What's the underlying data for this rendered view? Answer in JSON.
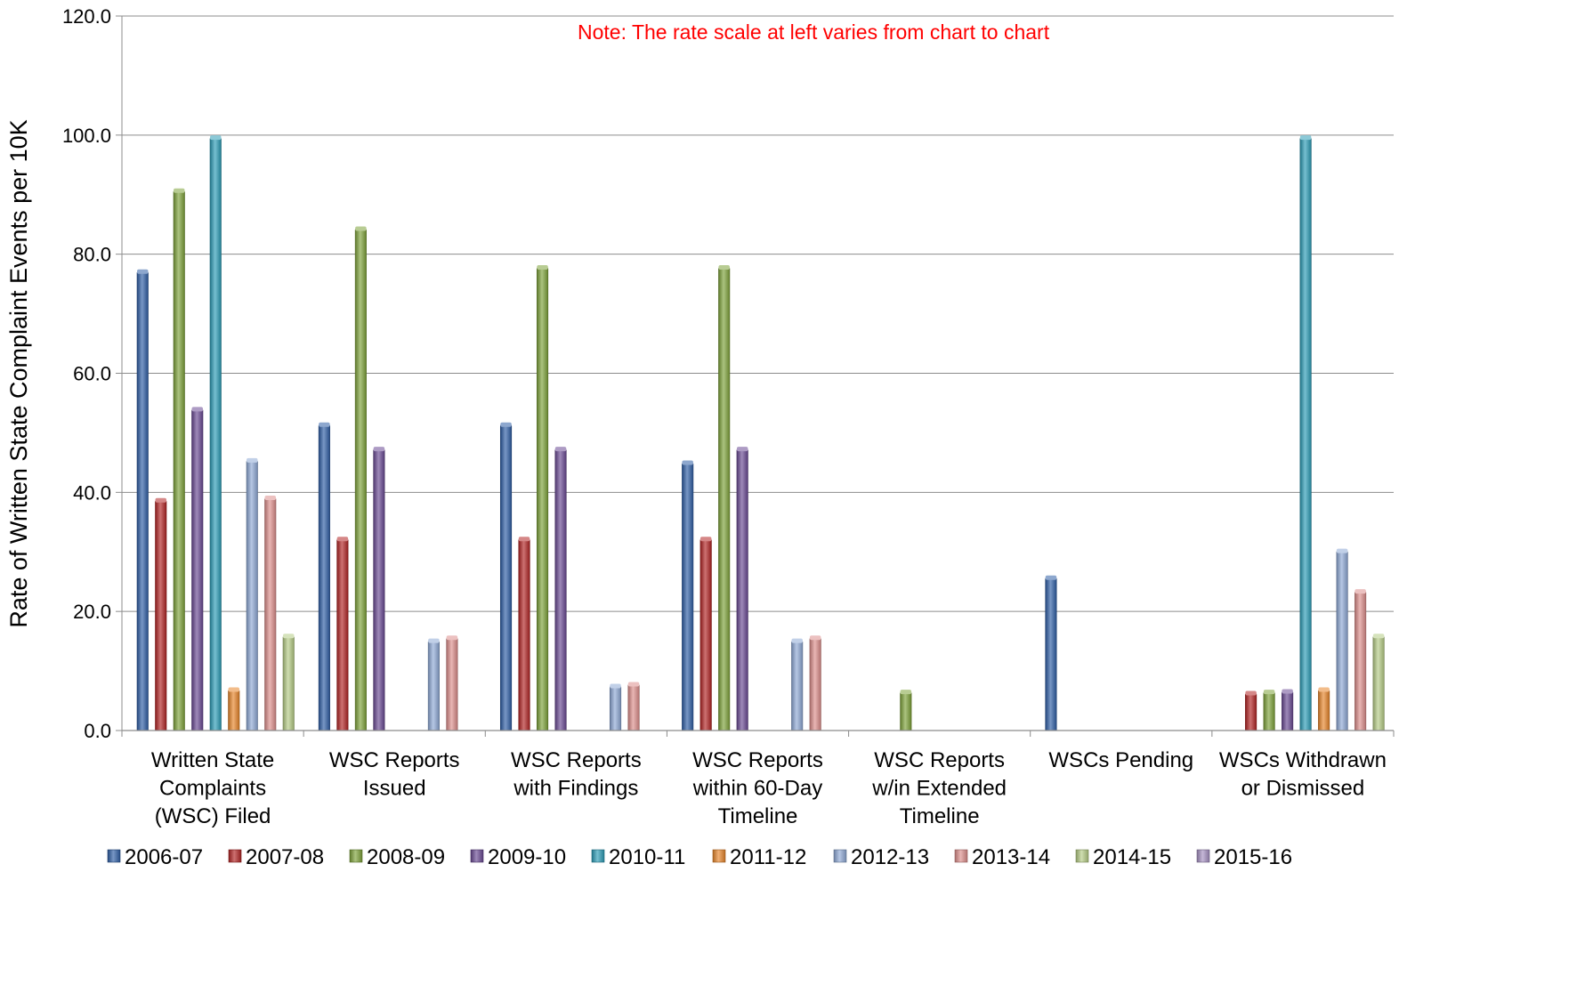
{
  "chart_data": {
    "type": "bar",
    "title": "",
    "note": "Note:  The rate scale at left varies from chart to chart",
    "ylabel": "Rate of Written State Complaint Events per 10K",
    "xlabel": "",
    "ylim": [
      0,
      120
    ],
    "yticks": [
      0,
      20,
      40,
      60,
      80,
      100,
      120
    ],
    "ytick_labels": [
      "0.0",
      "20.0",
      "40.0",
      "60.0",
      "80.0",
      "100.0",
      "120.0"
    ],
    "grid": "horizontal",
    "legend_position": "bottom",
    "categories": [
      [
        "Written State",
        "Complaints",
        "(WSC) Filed"
      ],
      [
        "WSC Reports",
        "Issued"
      ],
      [
        "WSC Reports",
        "with Findings"
      ],
      [
        "WSC Reports",
        "within 60-Day",
        "Timeline"
      ],
      [
        "WSC Reports",
        "w/in Extended",
        "Timeline"
      ],
      [
        "WSCs Pending"
      ],
      [
        "WSCs Withdrawn",
        "or Dismissed"
      ]
    ],
    "series": [
      {
        "name": "2006-07",
        "color": "#2f5fa6",
        "values": [
          77.0,
          51.3,
          51.3,
          44.9,
          0,
          25.6,
          0
        ]
      },
      {
        "name": "2007-08",
        "color": "#b22424",
        "values": [
          38.6,
          32.1,
          32.1,
          32.1,
          0,
          0,
          6.2
        ]
      },
      {
        "name": "2008-09",
        "color": "#7ea33a",
        "values": [
          90.6,
          84.2,
          77.7,
          77.7,
          6.4,
          0,
          6.4
        ]
      },
      {
        "name": "2009-10",
        "color": "#6a4a94",
        "values": [
          53.9,
          47.2,
          47.2,
          47.2,
          0,
          0,
          6.5
        ]
      },
      {
        "name": "2010-11",
        "color": "#2c9cb6",
        "values": [
          99.5,
          0,
          0,
          0,
          0,
          0,
          99.5
        ]
      },
      {
        "name": "2011-12",
        "color": "#e8862a",
        "values": [
          6.8,
          0,
          0,
          0,
          0,
          0,
          6.8
        ]
      },
      {
        "name": "2012-13",
        "color": "#8ea9d6",
        "values": [
          45.3,
          15.0,
          7.4,
          15.0,
          0,
          0,
          30.1
        ]
      },
      {
        "name": "2013-14",
        "color": "#dd8e8c",
        "values": [
          39.0,
          15.5,
          7.7,
          15.5,
          0,
          0,
          23.3
        ]
      },
      {
        "name": "2014-15",
        "color": "#b5cc85",
        "values": [
          15.8,
          0,
          0,
          0,
          0,
          0,
          15.8
        ]
      },
      {
        "name": "2015-16",
        "color": "#a590c2",
        "values": [
          0,
          0,
          0,
          0,
          0,
          0,
          0
        ]
      }
    ]
  }
}
